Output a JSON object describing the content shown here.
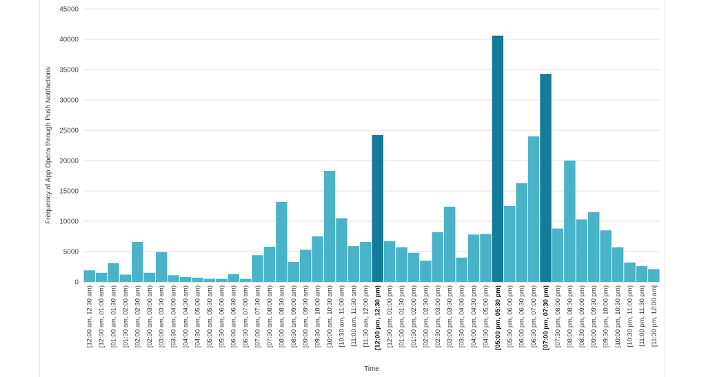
{
  "chart_data": {
    "type": "bar",
    "title": "",
    "xlabel": "Time",
    "ylabel": "Frequency of App Opens through Push Notifactions",
    "ylim": [
      0,
      45000
    ],
    "yticks": [
      0,
      5000,
      10000,
      15000,
      20000,
      25000,
      30000,
      35000,
      40000,
      45000
    ],
    "grid": true,
    "colors": {
      "normal": "#4ab3c8",
      "highlight": "#147b99",
      "grid": "#e0e0e0"
    },
    "categories": [
      "[12:00 am, 12:30 am)",
      "[12:30 am, 01:00 am)",
      "[01:00 am, 01:30 am)",
      "[01:30 am, 02:00 am)",
      "[02:00 am, 02:30 am)",
      "[02:30 am, 03:00 am)",
      "[03:00 am, 03:30 am)",
      "[03:30 am, 04:00 am)",
      "[04:00 am, 04:30 am)",
      "[04:30 am, 05:00 am)",
      "[05:00 am, 05:30 am)",
      "[05:30 am, 06:00 am)",
      "[06:00 am, 06:30 am)",
      "[06:30 am, 07:00 am)",
      "[07:00 am, 07:30 am)",
      "[07:30 am, 08:00 am)",
      "[08:00 am, 08:30 am)",
      "[08:30 am, 09:00 am)",
      "[09:00 am, 09:30 am)",
      "[09:30 am, 10:00 am)",
      "[10:00 am, 10:30 am)",
      "[10:30 am, 11:00 am)",
      "[11:00 am, 11:30 am)",
      "[11:30 am, 12:00 pm)",
      "[12:00 pm, 12:30 pm)",
      "[12:30 pm, 01:00 pm)",
      "[01:00 pm, 01:30 pm)",
      "[01:30 pm, 02:00 pm)",
      "[02:00 pm, 02:30 pm)",
      "[02:30 pm, 03:00 pm)",
      "[03:00 pm, 03:30 pm)",
      "[03:30 pm, 04:00 pm)",
      "[04:00 pm, 04:30 pm)",
      "[04:30 pm, 05:00 pm)",
      "[05:00 pm, 05:30 pm)",
      "[05:30 pm, 06:00 pm)",
      "[06:00 pm, 06:30 pm)",
      "[06:30 pm, 07:00 pm)",
      "[07:00 pm, 07:30 pm)",
      "[07:30 pm, 08:00 pm)",
      "[08:00 pm, 08:30 pm)",
      "[08:30 pm, 09:00 pm)",
      "[09:00 pm, 09:30 pm)",
      "[09:30 pm, 10:00 pm)",
      "[10:00 pm, 10:30 pm)",
      "[10:30 pm, 11:00 pm)",
      "[11:00 pm, 11:30 pm)",
      "[11:30 pm, 12:00 am]"
    ],
    "values": [
      1900,
      1500,
      3100,
      1200,
      6600,
      1500,
      4900,
      1100,
      800,
      700,
      500,
      500,
      1300,
      500,
      4400,
      5800,
      13200,
      3300,
      5300,
      7500,
      18300,
      10500,
      5900,
      6600,
      24200,
      6700,
      5700,
      4800,
      3500,
      8200,
      12400,
      4000,
      7800,
      7900,
      40600,
      12500,
      16300,
      24000,
      34300,
      8800,
      20000,
      10300,
      11500,
      8500,
      5700,
      3200,
      2600,
      2100
    ],
    "highlighted": [
      24,
      34,
      38
    ]
  }
}
